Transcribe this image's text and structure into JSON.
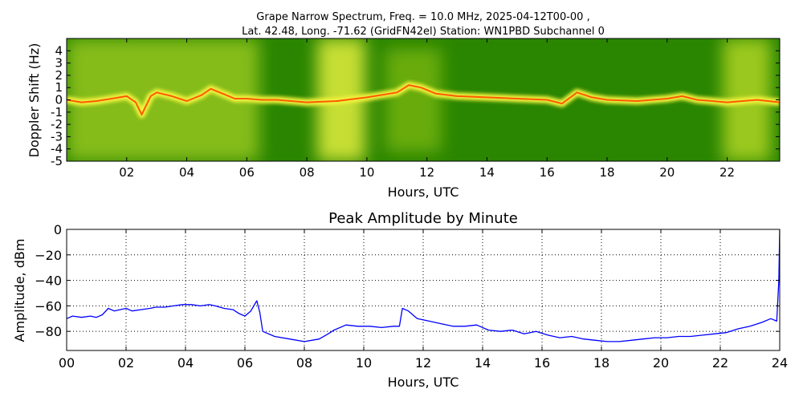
{
  "chart_data": [
    {
      "type": "heatmap",
      "title_line1": "Grape Narrow Spectrum, Freq. = 10.0 MHz, 2025-04-12T00-00 ,",
      "title_line2": "Lat.  42.48, Long. -71.62 (GridFN42el) Station: WN1PBD Subchannel 0",
      "xlabel": "Hours, UTC",
      "ylabel": "Doppler Shift (Hz)",
      "xlim": [
        0,
        23.75
      ],
      "ylim": [
        -5,
        5
      ],
      "x_ticks": [
        2,
        4,
        6,
        8,
        10,
        12,
        14,
        16,
        18,
        20,
        22
      ],
      "x_tick_labels": [
        "02",
        "04",
        "06",
        "08",
        "10",
        "12",
        "14",
        "16",
        "18",
        "20",
        "22"
      ],
      "y_ticks": [
        4,
        3,
        2,
        1,
        0,
        -1,
        -2,
        -3,
        -4,
        -5
      ],
      "y_tick_labels": [
        "4",
        "3",
        "2",
        "1",
        "0",
        "-1",
        "-2",
        "-3",
        "-4",
        "-5"
      ],
      "colormap": [
        "#1e7a00",
        "#3f9a00",
        "#8cc400",
        "#e6ef2a",
        "#ffff66",
        "#ff9a00",
        "#ff2a00"
      ],
      "trace": [
        [
          0,
          0.0
        ],
        [
          0.5,
          -0.2
        ],
        [
          1,
          -0.1
        ],
        [
          1.5,
          0.1
        ],
        [
          2,
          0.3
        ],
        [
          2.3,
          -0.2
        ],
        [
          2.5,
          -1.2
        ],
        [
          2.8,
          0.3
        ],
        [
          3,
          0.6
        ],
        [
          3.5,
          0.3
        ],
        [
          4,
          -0.1
        ],
        [
          4.5,
          0.4
        ],
        [
          4.8,
          0.9
        ],
        [
          5.2,
          0.5
        ],
        [
          5.6,
          0.1
        ],
        [
          6,
          0.1
        ],
        [
          6.5,
          0.0
        ],
        [
          7,
          0.0
        ],
        [
          8,
          -0.2
        ],
        [
          9,
          -0.1
        ],
        [
          10,
          0.2
        ],
        [
          11,
          0.6
        ],
        [
          11.4,
          1.2
        ],
        [
          11.8,
          1.0
        ],
        [
          12.3,
          0.5
        ],
        [
          13,
          0.3
        ],
        [
          14,
          0.2
        ],
        [
          15,
          0.1
        ],
        [
          16,
          0.0
        ],
        [
          16.5,
          -0.3
        ],
        [
          17,
          0.6
        ],
        [
          17.5,
          0.2
        ],
        [
          18,
          0.0
        ],
        [
          19,
          -0.1
        ],
        [
          20,
          0.1
        ],
        [
          20.5,
          0.3
        ],
        [
          21,
          0.0
        ],
        [
          22,
          -0.2
        ],
        [
          23,
          0.0
        ],
        [
          23.75,
          -0.2
        ]
      ]
    },
    {
      "type": "line",
      "title": "Peak Amplitude by Minute",
      "xlabel": "Hours, UTC",
      "ylabel": "Amplitude, dBm",
      "xlim": [
        0,
        24
      ],
      "ylim": [
        -95,
        0
      ],
      "grid": true,
      "x_ticks": [
        0,
        2,
        4,
        6,
        8,
        10,
        12,
        14,
        16,
        18,
        20,
        22,
        24
      ],
      "x_tick_labels": [
        "00",
        "02",
        "04",
        "06",
        "08",
        "10",
        "12",
        "14",
        "16",
        "18",
        "20",
        "22",
        "24"
      ],
      "y_ticks": [
        0,
        -20,
        -40,
        -60,
        -80
      ],
      "y_tick_labels": [
        "0",
        "−20",
        "−40",
        "−60",
        "−80"
      ],
      "series": [
        {
          "name": "Peak Amplitude",
          "color": "#0000ff",
          "points": [
            [
              0.0,
              -70
            ],
            [
              0.2,
              -68
            ],
            [
              0.5,
              -69
            ],
            [
              0.8,
              -68
            ],
            [
              1.0,
              -69
            ],
            [
              1.2,
              -67
            ],
            [
              1.4,
              -62
            ],
            [
              1.6,
              -64
            ],
            [
              1.8,
              -63
            ],
            [
              2.0,
              -62
            ],
            [
              2.2,
              -64
            ],
            [
              2.5,
              -63
            ],
            [
              2.8,
              -62
            ],
            [
              3.0,
              -61
            ],
            [
              3.3,
              -61
            ],
            [
              3.6,
              -60
            ],
            [
              3.9,
              -59
            ],
            [
              4.2,
              -59
            ],
            [
              4.5,
              -60
            ],
            [
              4.8,
              -59
            ],
            [
              5.0,
              -60
            ],
            [
              5.3,
              -62
            ],
            [
              5.6,
              -63
            ],
            [
              5.8,
              -66
            ],
            [
              6.0,
              -68
            ],
            [
              6.2,
              -64
            ],
            [
              6.4,
              -56
            ],
            [
              6.5,
              -65
            ],
            [
              6.6,
              -80
            ],
            [
              7.0,
              -84
            ],
            [
              7.5,
              -86
            ],
            [
              8.0,
              -88
            ],
            [
              8.5,
              -86
            ],
            [
              8.8,
              -82
            ],
            [
              9.0,
              -79
            ],
            [
              9.4,
              -75
            ],
            [
              9.8,
              -76
            ],
            [
              10.2,
              -76
            ],
            [
              10.6,
              -77
            ],
            [
              11.0,
              -76
            ],
            [
              11.2,
              -76
            ],
            [
              11.3,
              -62
            ],
            [
              11.5,
              -64
            ],
            [
              11.8,
              -70
            ],
            [
              12.2,
              -72
            ],
            [
              12.6,
              -74
            ],
            [
              13.0,
              -76
            ],
            [
              13.4,
              -76
            ],
            [
              13.8,
              -75
            ],
            [
              14.2,
              -79
            ],
            [
              14.6,
              -80
            ],
            [
              15.0,
              -79
            ],
            [
              15.4,
              -82
            ],
            [
              15.8,
              -80
            ],
            [
              16.2,
              -83
            ],
            [
              16.6,
              -85
            ],
            [
              17.0,
              -84
            ],
            [
              17.4,
              -86
            ],
            [
              17.8,
              -87
            ],
            [
              18.2,
              -88
            ],
            [
              18.6,
              -88
            ],
            [
              19.0,
              -87
            ],
            [
              19.4,
              -86
            ],
            [
              19.8,
              -85
            ],
            [
              20.2,
              -85
            ],
            [
              20.6,
              -84
            ],
            [
              21.0,
              -84
            ],
            [
              21.4,
              -83
            ],
            [
              21.8,
              -82
            ],
            [
              22.2,
              -81
            ],
            [
              22.6,
              -78
            ],
            [
              23.0,
              -76
            ],
            [
              23.4,
              -73
            ],
            [
              23.7,
              -70
            ],
            [
              23.9,
              -72
            ],
            [
              23.97,
              -40
            ],
            [
              24.0,
              0
            ]
          ]
        }
      ]
    }
  ]
}
